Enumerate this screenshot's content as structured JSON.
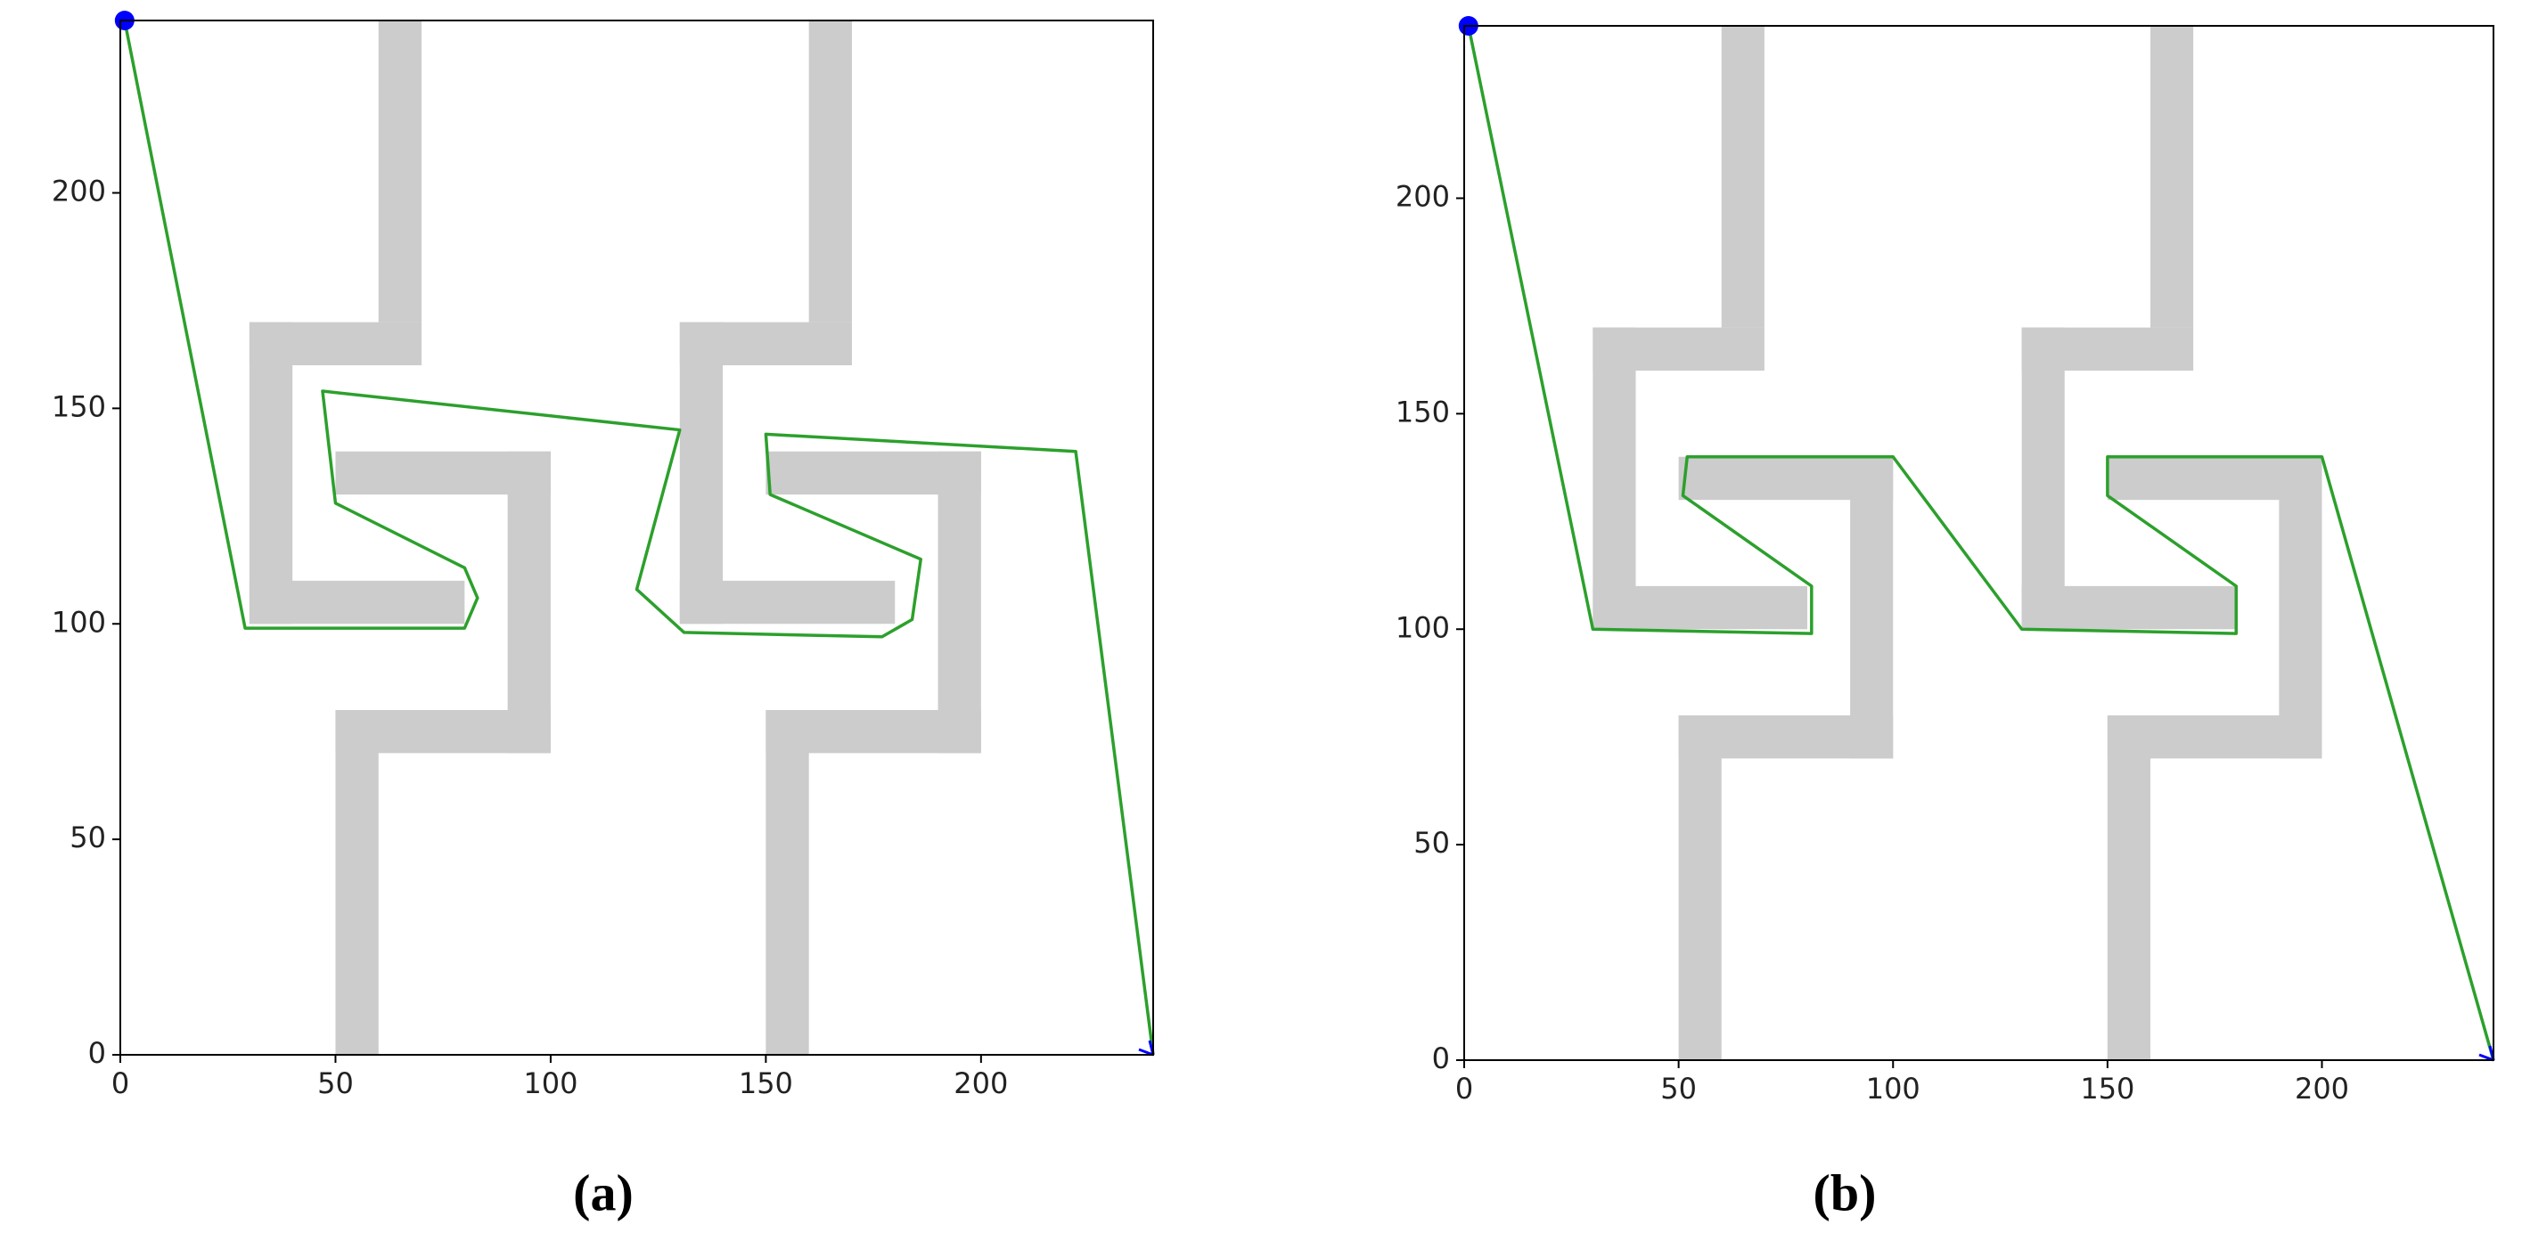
{
  "chart_data": [
    {
      "type": "line",
      "caption": "(a)",
      "x": [
        1,
        29,
        80,
        83,
        80,
        50,
        47,
        130,
        120,
        131,
        177,
        184,
        186,
        151,
        150,
        222,
        240
      ],
      "values": [
        240,
        99,
        99,
        106,
        113,
        128,
        154,
        145,
        108,
        98,
        97,
        101,
        115,
        130,
        144,
        140,
        0
      ],
      "color": "#2ca02c",
      "marker_color": "#0000ff",
      "obstacle_color": "#cccccc",
      "obstacles": [
        [
          60,
          170,
          70,
          240
        ],
        [
          30,
          160,
          70,
          170
        ],
        [
          30,
          100,
          40,
          170
        ],
        [
          30,
          100,
          80,
          110
        ],
        [
          50,
          130,
          100,
          140
        ],
        [
          90,
          70,
          100,
          140
        ],
        [
          50,
          70,
          100,
          80
        ],
        [
          50,
          0,
          60,
          80
        ],
        [
          160,
          170,
          170,
          240
        ],
        [
          130,
          160,
          170,
          170
        ],
        [
          130,
          100,
          140,
          170
        ],
        [
          130,
          100,
          180,
          110
        ],
        [
          150,
          130,
          200,
          140
        ],
        [
          190,
          70,
          200,
          140
        ],
        [
          150,
          70,
          200,
          80
        ],
        [
          150,
          0,
          160,
          80
        ]
      ],
      "xlim": [
        0,
        240
      ],
      "ylim": [
        0,
        240
      ],
      "xticks": [
        0,
        50,
        100,
        150,
        200
      ],
      "yticks": [
        0,
        50,
        100,
        150,
        200
      ]
    },
    {
      "type": "line",
      "caption": "(b)",
      "x": [
        1,
        30,
        81,
        81,
        51,
        52,
        100,
        130,
        180,
        180,
        150,
        150,
        200,
        240
      ],
      "values": [
        240,
        100,
        99,
        110,
        131,
        140,
        140,
        100,
        99,
        110,
        131,
        140,
        140,
        0
      ],
      "color": "#2ca02c",
      "marker_color": "#0000ff",
      "obstacle_color": "#cccccc",
      "obstacles": [
        [
          60,
          170,
          70,
          240
        ],
        [
          30,
          160,
          70,
          170
        ],
        [
          30,
          100,
          40,
          170
        ],
        [
          30,
          100,
          80,
          110
        ],
        [
          50,
          130,
          100,
          140
        ],
        [
          90,
          70,
          100,
          140
        ],
        [
          50,
          70,
          100,
          80
        ],
        [
          50,
          0,
          60,
          80
        ],
        [
          160,
          170,
          170,
          240
        ],
        [
          130,
          160,
          170,
          170
        ],
        [
          130,
          100,
          140,
          170
        ],
        [
          130,
          100,
          180,
          110
        ],
        [
          150,
          130,
          200,
          140
        ],
        [
          190,
          70,
          200,
          140
        ],
        [
          150,
          70,
          200,
          80
        ],
        [
          150,
          0,
          160,
          80
        ]
      ],
      "xlim": [
        0,
        240
      ],
      "ylim": [
        0,
        240
      ],
      "xticks": [
        0,
        50,
        100,
        150,
        200
      ],
      "yticks": [
        0,
        50,
        100,
        150,
        200
      ]
    }
  ]
}
